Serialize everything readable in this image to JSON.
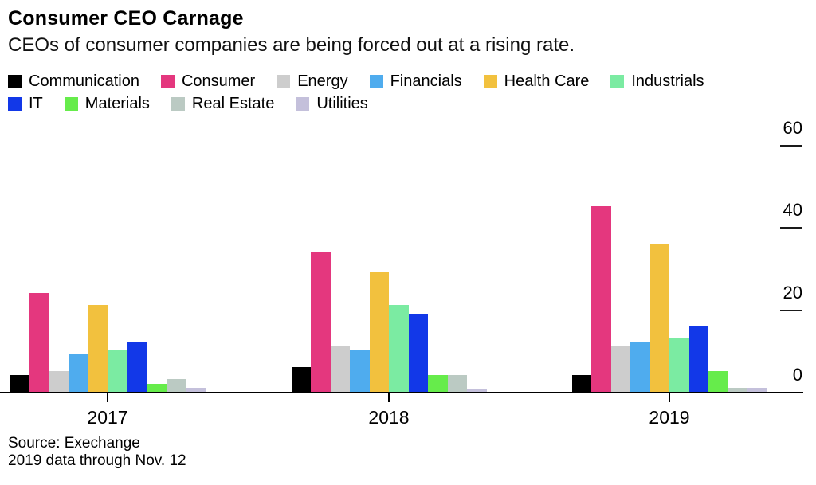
{
  "header": {
    "title": "Consumer CEO Carnage",
    "subtitle": "CEOs of consumer companies are being forced out at a rising rate."
  },
  "chart_data": {
    "type": "bar",
    "title": "Consumer CEO Carnage",
    "subtitle": "CEOs of consumer companies are being forced out at a rising rate.",
    "categories": [
      "2017",
      "2018",
      "2019"
    ],
    "series": [
      {
        "name": "Communication",
        "color": "#000000",
        "values": [
          4,
          6,
          4
        ]
      },
      {
        "name": "Consumer",
        "color": "#E4377E",
        "values": [
          24,
          34,
          45
        ]
      },
      {
        "name": "Energy",
        "color": "#CDCDCD",
        "values": [
          5,
          11,
          11
        ]
      },
      {
        "name": "Financials",
        "color": "#4FACEE",
        "values": [
          9,
          10,
          12
        ]
      },
      {
        "name": "Health Care",
        "color": "#F2C13E",
        "values": [
          21,
          29,
          36
        ]
      },
      {
        "name": "Industrials",
        "color": "#7BEBA2",
        "values": [
          10,
          21,
          13
        ]
      },
      {
        "name": "IT",
        "color": "#1238E8",
        "values": [
          12,
          19,
          16
        ]
      },
      {
        "name": "Materials",
        "color": "#66EC4B",
        "values": [
          2,
          4,
          5
        ]
      },
      {
        "name": "Real Estate",
        "color": "#BBCAC3",
        "values": [
          3,
          4,
          1
        ]
      },
      {
        "name": "Utilities",
        "color": "#C4C0DB",
        "values": [
          1,
          0.5,
          1
        ]
      }
    ],
    "legend_rows": [
      [
        "Communication",
        "Consumer",
        "Energy",
        "Financials",
        "Health Care",
        "Industrials"
      ],
      [
        "IT",
        "Materials",
        "Real Estate",
        "Utilities"
      ]
    ],
    "legend_position": "top",
    "xlabel": "",
    "ylabel": "",
    "yticks": [
      0,
      20,
      40,
      60
    ],
    "ylim": [
      0,
      66
    ],
    "yaxis_side": "right",
    "grid": false
  },
  "footer": {
    "source": "Source: Exechange",
    "note": "2019 data through Nov. 12"
  }
}
